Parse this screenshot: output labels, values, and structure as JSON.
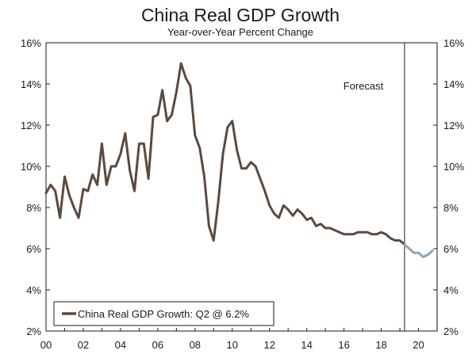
{
  "chart_data": {
    "type": "line",
    "title": "China Real GDP Growth",
    "subtitle": "Year-over-Year Percent Change",
    "xlabel": "",
    "ylabel": "",
    "ylim": [
      2,
      16
    ],
    "xlim": [
      2000,
      2021
    ],
    "y_ticks": [
      "2%",
      "4%",
      "6%",
      "8%",
      "10%",
      "12%",
      "14%",
      "16%"
    ],
    "x_ticks": [
      {
        "value": 2000,
        "label": "00"
      },
      {
        "value": 2002,
        "label": "02"
      },
      {
        "value": 2004,
        "label": "04"
      },
      {
        "value": 2006,
        "label": "06"
      },
      {
        "value": 2008,
        "label": "08"
      },
      {
        "value": 2010,
        "label": "10"
      },
      {
        "value": 2012,
        "label": "12"
      },
      {
        "value": 2014,
        "label": "14"
      },
      {
        "value": 2016,
        "label": "16"
      },
      {
        "value": 2018,
        "label": "18"
      },
      {
        "value": 2020,
        "label": "20"
      }
    ],
    "forecast_start": 2019.25,
    "forecast_label": "Forecast",
    "grid": false,
    "legend_position": "bottom-left",
    "series": [
      {
        "name": "China Real GDP Growth: Q2 @ 6.2%",
        "color": "#5a4a3f",
        "points": [
          [
            2000.0,
            8.7
          ],
          [
            2000.25,
            9.1
          ],
          [
            2000.5,
            8.8
          ],
          [
            2000.75,
            7.5
          ],
          [
            2001.0,
            9.5
          ],
          [
            2001.25,
            8.6
          ],
          [
            2001.5,
            8.0
          ],
          [
            2001.75,
            7.5
          ],
          [
            2002.0,
            8.9
          ],
          [
            2002.25,
            8.8
          ],
          [
            2002.5,
            9.6
          ],
          [
            2002.75,
            9.1
          ],
          [
            2003.0,
            11.1
          ],
          [
            2003.25,
            9.1
          ],
          [
            2003.5,
            10.0
          ],
          [
            2003.75,
            10.0
          ],
          [
            2004.0,
            10.6
          ],
          [
            2004.25,
            11.6
          ],
          [
            2004.5,
            9.8
          ],
          [
            2004.75,
            8.8
          ],
          [
            2005.0,
            11.1
          ],
          [
            2005.25,
            11.1
          ],
          [
            2005.5,
            9.4
          ],
          [
            2005.75,
            12.4
          ],
          [
            2006.0,
            12.5
          ],
          [
            2006.25,
            13.7
          ],
          [
            2006.5,
            12.2
          ],
          [
            2006.75,
            12.5
          ],
          [
            2007.0,
            13.6
          ],
          [
            2007.25,
            15.0
          ],
          [
            2007.5,
            14.3
          ],
          [
            2007.75,
            13.9
          ],
          [
            2008.0,
            11.5
          ],
          [
            2008.25,
            10.9
          ],
          [
            2008.5,
            9.5
          ],
          [
            2008.75,
            7.1
          ],
          [
            2009.0,
            6.4
          ],
          [
            2009.25,
            8.3
          ],
          [
            2009.5,
            10.6
          ],
          [
            2009.75,
            11.9
          ],
          [
            2010.0,
            12.2
          ],
          [
            2010.25,
            10.8
          ],
          [
            2010.5,
            9.9
          ],
          [
            2010.75,
            9.9
          ],
          [
            2011.0,
            10.2
          ],
          [
            2011.25,
            10.0
          ],
          [
            2011.5,
            9.4
          ],
          [
            2011.75,
            8.8
          ],
          [
            2012.0,
            8.1
          ],
          [
            2012.25,
            7.7
          ],
          [
            2012.5,
            7.5
          ],
          [
            2012.75,
            8.1
          ],
          [
            2013.0,
            7.9
          ],
          [
            2013.25,
            7.6
          ],
          [
            2013.5,
            7.9
          ],
          [
            2013.75,
            7.7
          ],
          [
            2014.0,
            7.4
          ],
          [
            2014.25,
            7.5
          ],
          [
            2014.5,
            7.1
          ],
          [
            2014.75,
            7.2
          ],
          [
            2015.0,
            7.0
          ],
          [
            2015.25,
            7.0
          ],
          [
            2015.5,
            6.9
          ],
          [
            2015.75,
            6.8
          ],
          [
            2016.0,
            6.7
          ],
          [
            2016.25,
            6.7
          ],
          [
            2016.5,
            6.7
          ],
          [
            2016.75,
            6.8
          ],
          [
            2017.0,
            6.8
          ],
          [
            2017.25,
            6.8
          ],
          [
            2017.5,
            6.7
          ],
          [
            2017.75,
            6.7
          ],
          [
            2018.0,
            6.8
          ],
          [
            2018.25,
            6.7
          ],
          [
            2018.5,
            6.5
          ],
          [
            2018.75,
            6.4
          ],
          [
            2019.0,
            6.4
          ],
          [
            2019.25,
            6.2
          ]
        ]
      },
      {
        "name": "Forecast",
        "color": "#8ea2b6",
        "points": [
          [
            2019.25,
            6.2
          ],
          [
            2019.5,
            6.0
          ],
          [
            2019.75,
            5.8
          ],
          [
            2020.0,
            5.8
          ],
          [
            2020.25,
            5.6
          ],
          [
            2020.5,
            5.7
          ],
          [
            2020.75,
            5.9
          ]
        ]
      }
    ]
  }
}
